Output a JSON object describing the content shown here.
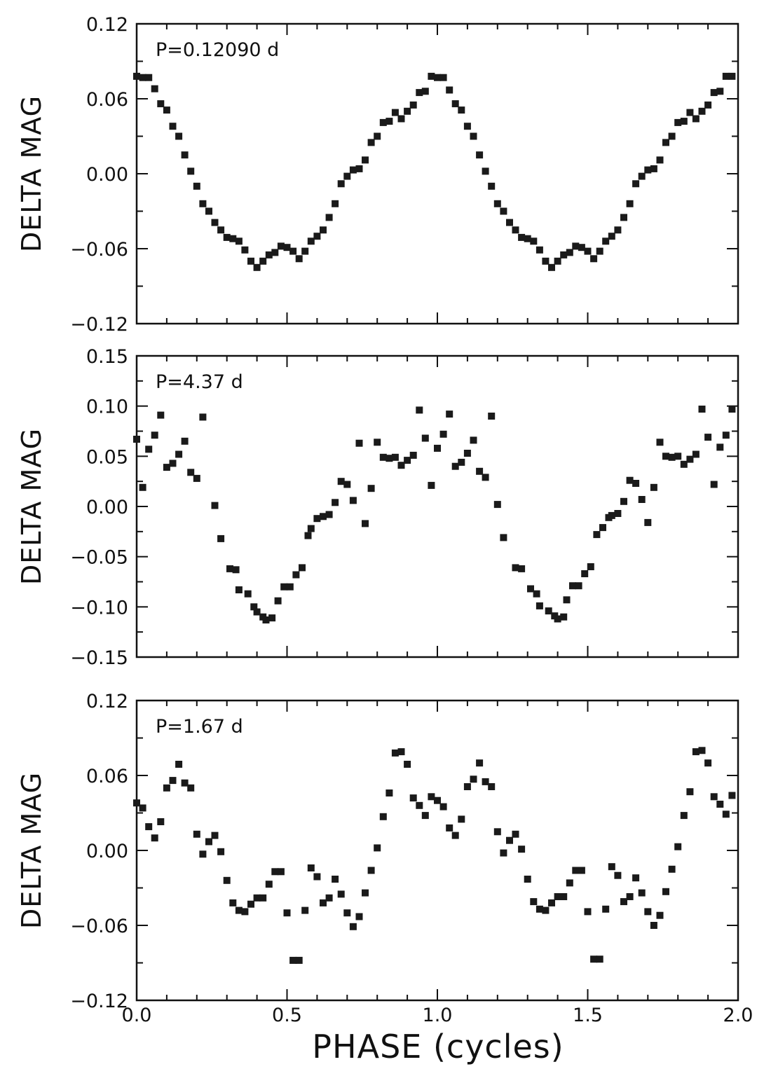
{
  "figure": {
    "xlabel": "PHASE  (cycles)",
    "x_ticks": [
      "0.0",
      "0.5",
      "1.0",
      "1.5",
      "2.0"
    ]
  },
  "chart_data": [
    {
      "type": "scatter",
      "annotation": "P=0.12090  d",
      "ylabel": "DELTA  MAG",
      "xlim": [
        0,
        2
      ],
      "ylim": [
        -0.12,
        0.12
      ],
      "y_ticks": [
        "0.12",
        "0.06",
        "0.00",
        "−0.06",
        "−0.12"
      ],
      "y_tick_values": [
        0.12,
        0.06,
        0.0,
        -0.06,
        -0.12
      ],
      "marker_color": "#1a1a1a",
      "x": [
        0.0,
        0.02,
        0.04,
        0.06,
        0.08,
        0.1,
        0.12,
        0.14,
        0.16,
        0.18,
        0.2,
        0.22,
        0.24,
        0.26,
        0.28,
        0.3,
        0.32,
        0.34,
        0.36,
        0.38,
        0.4,
        0.42,
        0.44,
        0.46,
        0.48,
        0.5,
        0.52,
        0.54,
        0.56,
        0.58,
        0.6,
        0.62,
        0.64,
        0.66,
        0.68,
        0.7,
        0.72,
        0.74,
        0.76,
        0.78,
        0.8,
        0.82,
        0.84,
        0.86,
        0.88,
        0.9,
        0.92,
        0.94,
        0.96,
        0.98,
        1.0,
        1.02,
        1.04,
        1.06,
        1.08,
        1.1,
        1.12,
        1.14,
        1.16,
        1.18,
        1.2,
        1.22,
        1.24,
        1.26,
        1.28,
        1.3,
        1.32,
        1.34,
        1.36,
        1.38,
        1.4,
        1.42,
        1.44,
        1.46,
        1.48,
        1.5,
        1.52,
        1.54,
        1.56,
        1.58,
        1.6,
        1.62,
        1.64,
        1.66,
        1.68,
        1.7,
        1.72,
        1.74,
        1.76,
        1.78,
        1.8,
        1.82,
        1.84,
        1.86,
        1.88,
        1.9,
        1.92,
        1.94,
        1.96,
        1.98
      ],
      "y": [
        0.078,
        0.077,
        0.077,
        0.068,
        0.056,
        0.051,
        0.038,
        0.03,
        0.015,
        0.002,
        -0.01,
        -0.024,
        -0.03,
        -0.039,
        -0.045,
        -0.051,
        -0.052,
        -0.054,
        -0.061,
        -0.07,
        -0.075,
        -0.07,
        -0.065,
        -0.063,
        -0.058,
        -0.059,
        -0.062,
        -0.068,
        -0.062,
        -0.054,
        -0.05,
        -0.045,
        -0.035,
        -0.024,
        -0.008,
        -0.002,
        0.003,
        0.004,
        0.011,
        0.025,
        0.03,
        0.041,
        0.042,
        0.049,
        0.044,
        0.05,
        0.055,
        0.065,
        0.066,
        0.078,
        0.077,
        0.077,
        0.067,
        0.056,
        0.051,
        0.038,
        0.03,
        0.015,
        0.002,
        -0.01,
        -0.024,
        -0.03,
        -0.039,
        -0.045,
        -0.051,
        -0.052,
        -0.054,
        -0.061,
        -0.07,
        -0.075,
        -0.07,
        -0.065,
        -0.063,
        -0.058,
        -0.059,
        -0.062,
        -0.068,
        -0.062,
        -0.054,
        -0.05,
        -0.045,
        -0.035,
        -0.024,
        -0.008,
        -0.002,
        0.003,
        0.004,
        0.011,
        0.025,
        0.03,
        0.041,
        0.042,
        0.049,
        0.044,
        0.05,
        0.055,
        0.065,
        0.066,
        0.078,
        0.078
      ]
    },
    {
      "type": "scatter",
      "annotation": "P=4.37  d",
      "ylabel": "DELTA  MAG",
      "xlim": [
        0,
        2
      ],
      "ylim": [
        -0.15,
        0.15
      ],
      "y_ticks": [
        "0.15",
        "0.10",
        "0.05",
        "0.00",
        "−0.05",
        "−0.10",
        "−0.15"
      ],
      "y_tick_values": [
        0.15,
        0.1,
        0.05,
        0.0,
        -0.05,
        -0.1,
        -0.15
      ],
      "marker_color": "#1a1a1a",
      "x": [
        0.0,
        0.02,
        0.04,
        0.06,
        0.08,
        0.1,
        0.12,
        0.14,
        0.16,
        0.18,
        0.2,
        0.22,
        0.26,
        0.28,
        0.31,
        0.33,
        0.34,
        0.37,
        0.39,
        0.4,
        0.42,
        0.43,
        0.45,
        0.47,
        0.49,
        0.51,
        0.53,
        0.55,
        0.57,
        0.58,
        0.6,
        0.62,
        0.64,
        0.66,
        0.68,
        0.7,
        0.72,
        0.74,
        0.76,
        0.78,
        0.8,
        0.82,
        0.84,
        0.86,
        0.88,
        0.9,
        0.92,
        0.94,
        0.96,
        0.98,
        1.0,
        1.02,
        1.04,
        1.06,
        1.08,
        1.1,
        1.12,
        1.14,
        1.16,
        1.18,
        1.2,
        1.22,
        1.26,
        1.28,
        1.31,
        1.33,
        1.34,
        1.37,
        1.39,
        1.4,
        1.42,
        1.43,
        1.45,
        1.47,
        1.49,
        1.51,
        1.53,
        1.55,
        1.57,
        1.58,
        1.6,
        1.62,
        1.64,
        1.66,
        1.68,
        1.7,
        1.72,
        1.74,
        1.76,
        1.78,
        1.8,
        1.82,
        1.84,
        1.86,
        1.88,
        1.9,
        1.92,
        1.94,
        1.96,
        1.98
      ],
      "y": [
        0.067,
        0.019,
        0.057,
        0.071,
        0.091,
        0.039,
        0.043,
        0.052,
        0.065,
        0.034,
        0.028,
        0.089,
        0.001,
        -0.032,
        -0.062,
        -0.063,
        -0.083,
        -0.087,
        -0.1,
        -0.105,
        -0.11,
        -0.113,
        -0.111,
        -0.094,
        -0.08,
        -0.08,
        -0.068,
        -0.061,
        -0.029,
        -0.022,
        -0.012,
        -0.01,
        -0.008,
        0.004,
        0.025,
        0.022,
        0.006,
        0.063,
        -0.017,
        0.018,
        0.064,
        0.049,
        0.048,
        0.049,
        0.041,
        0.046,
        0.051,
        0.096,
        0.068,
        0.021,
        0.058,
        0.072,
        0.092,
        0.04,
        0.044,
        0.053,
        0.066,
        0.035,
        0.029,
        0.09,
        0.002,
        -0.031,
        -0.061,
        -0.062,
        -0.082,
        -0.087,
        -0.099,
        -0.104,
        -0.109,
        -0.112,
        -0.11,
        -0.093,
        -0.079,
        -0.079,
        -0.067,
        -0.06,
        -0.028,
        -0.021,
        -0.011,
        -0.009,
        -0.007,
        0.005,
        0.026,
        0.023,
        0.007,
        -0.016,
        0.019,
        0.064,
        0.05,
        0.049,
        0.05,
        0.042,
        0.047,
        0.052,
        0.097,
        0.069,
        0.022,
        0.059,
        0.071,
        0.097
      ]
    },
    {
      "type": "scatter",
      "annotation": "P=1.67  d",
      "ylabel": "DELTA  MAG",
      "xlim": [
        0,
        2
      ],
      "ylim": [
        -0.12,
        0.12
      ],
      "y_ticks": [
        "0.12",
        "0.06",
        "0.00",
        "−0.06",
        "−0.12"
      ],
      "y_tick_values": [
        0.12,
        0.06,
        0.0,
        -0.06,
        -0.12
      ],
      "marker_color": "#1a1a1a",
      "x": [
        0.0,
        0.02,
        0.04,
        0.06,
        0.08,
        0.1,
        0.12,
        0.14,
        0.16,
        0.18,
        0.2,
        0.22,
        0.24,
        0.26,
        0.28,
        0.3,
        0.32,
        0.34,
        0.36,
        0.38,
        0.4,
        0.42,
        0.44,
        0.46,
        0.48,
        0.5,
        0.52,
        0.54,
        0.56,
        0.58,
        0.6,
        0.62,
        0.64,
        0.66,
        0.68,
        0.7,
        0.72,
        0.74,
        0.76,
        0.78,
        0.8,
        0.82,
        0.84,
        0.86,
        0.88,
        0.9,
        0.92,
        0.94,
        0.96,
        0.98,
        1.0,
        1.02,
        1.04,
        1.06,
        1.08,
        1.1,
        1.12,
        1.14,
        1.16,
        1.18,
        1.2,
        1.22,
        1.24,
        1.26,
        1.28,
        1.3,
        1.32,
        1.34,
        1.36,
        1.38,
        1.4,
        1.42,
        1.44,
        1.46,
        1.48,
        1.5,
        1.52,
        1.54,
        1.56,
        1.58,
        1.6,
        1.62,
        1.64,
        1.66,
        1.68,
        1.7,
        1.72,
        1.74,
        1.76,
        1.78,
        1.8,
        1.82,
        1.84,
        1.86,
        1.88,
        1.9,
        1.92,
        1.94,
        1.96,
        1.98
      ],
      "y": [
        0.038,
        0.034,
        0.019,
        0.01,
        0.023,
        0.05,
        0.056,
        0.069,
        0.054,
        0.05,
        0.013,
        -0.003,
        0.007,
        0.012,
        -0.001,
        -0.024,
        -0.042,
        -0.048,
        -0.049,
        -0.043,
        -0.038,
        -0.038,
        -0.027,
        -0.017,
        -0.017,
        -0.05,
        -0.088,
        -0.088,
        -0.048,
        -0.014,
        -0.021,
        -0.042,
        -0.038,
        -0.023,
        -0.035,
        -0.05,
        -0.061,
        -0.053,
        -0.034,
        -0.016,
        0.002,
        0.027,
        0.046,
        0.078,
        0.079,
        0.069,
        0.042,
        0.036,
        0.028,
        0.043,
        0.04,
        0.035,
        0.018,
        0.012,
        0.025,
        0.051,
        0.057,
        0.07,
        0.055,
        0.051,
        0.015,
        -0.002,
        0.008,
        0.013,
        0.001,
        -0.023,
        -0.041,
        -0.047,
        -0.048,
        -0.042,
        -0.037,
        -0.037,
        -0.026,
        -0.016,
        -0.016,
        -0.049,
        -0.087,
        -0.087,
        -0.047,
        -0.013,
        -0.02,
        -0.041,
        -0.037,
        -0.022,
        -0.034,
        -0.049,
        -0.06,
        -0.052,
        -0.033,
        -0.015,
        0.003,
        0.028,
        0.047,
        0.079,
        0.08,
        0.07,
        0.043,
        0.037,
        0.029,
        0.044
      ]
    }
  ]
}
